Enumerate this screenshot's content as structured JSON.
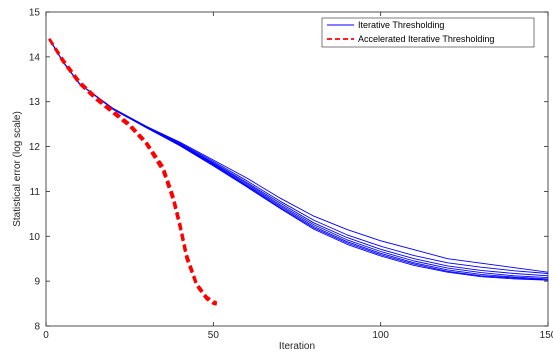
{
  "chart_data": {
    "type": "line",
    "xlabel": "Iteration",
    "ylabel": "Statistical error (log scale)",
    "xlim": [
      0,
      150
    ],
    "ylim": [
      8,
      15
    ],
    "xticks": [
      "0",
      "50",
      "100",
      "150"
    ],
    "yticks": [
      "8",
      "9",
      "10",
      "11",
      "12",
      "13",
      "14",
      "15"
    ],
    "grid": false,
    "legend_position": "top-right",
    "legend": [
      "Iterative Thresholding",
      "Accelerated Iterative Thresholding"
    ],
    "colors": {
      "iterative": "#0000ff",
      "accelerated": "#ff0000"
    },
    "series": [
      {
        "name": "Iterative Thresholding",
        "style": "solid",
        "runs": [
          [
            [
              1,
              14.4
            ],
            [
              5,
              13.9
            ],
            [
              10,
              13.4
            ],
            [
              20,
              12.85
            ],
            [
              30,
              12.45
            ],
            [
              40,
              12.1
            ],
            [
              50,
              11.7
            ],
            [
              60,
              11.3
            ],
            [
              70,
              10.85
            ],
            [
              80,
              10.45
            ],
            [
              90,
              10.15
            ],
            [
              100,
              9.9
            ],
            [
              110,
              9.7
            ],
            [
              120,
              9.5
            ],
            [
              130,
              9.4
            ],
            [
              140,
              9.3
            ],
            [
              150,
              9.2
            ]
          ],
          [
            [
              1,
              14.4
            ],
            [
              5,
              13.9
            ],
            [
              10,
              13.4
            ],
            [
              20,
              12.85
            ],
            [
              30,
              12.45
            ],
            [
              40,
              12.08
            ],
            [
              50,
              11.67
            ],
            [
              60,
              11.24
            ],
            [
              70,
              10.78
            ],
            [
              80,
              10.36
            ],
            [
              90,
              10.03
            ],
            [
              100,
              9.78
            ],
            [
              110,
              9.57
            ],
            [
              120,
              9.41
            ],
            [
              130,
              9.31
            ],
            [
              140,
              9.23
            ],
            [
              150,
              9.17
            ]
          ],
          [
            [
              1,
              14.4
            ],
            [
              5,
              13.9
            ],
            [
              10,
              13.4
            ],
            [
              20,
              12.85
            ],
            [
              30,
              12.44
            ],
            [
              40,
              12.06
            ],
            [
              50,
              11.64
            ],
            [
              60,
              11.2
            ],
            [
              70,
              10.74
            ],
            [
              80,
              10.3
            ],
            [
              90,
              9.97
            ],
            [
              100,
              9.71
            ],
            [
              110,
              9.5
            ],
            [
              120,
              9.34
            ],
            [
              130,
              9.24
            ],
            [
              140,
              9.17
            ],
            [
              150,
              9.12
            ]
          ],
          [
            [
              1,
              14.4
            ],
            [
              5,
              13.9
            ],
            [
              10,
              13.4
            ],
            [
              20,
              12.84
            ],
            [
              30,
              12.43
            ],
            [
              40,
              12.05
            ],
            [
              50,
              11.62
            ],
            [
              60,
              11.17
            ],
            [
              70,
              10.7
            ],
            [
              80,
              10.26
            ],
            [
              90,
              9.92
            ],
            [
              100,
              9.66
            ],
            [
              110,
              9.45
            ],
            [
              120,
              9.29
            ],
            [
              130,
              9.19
            ],
            [
              140,
              9.12
            ],
            [
              150,
              9.08
            ]
          ],
          [
            [
              1,
              14.4
            ],
            [
              5,
              13.9
            ],
            [
              10,
              13.4
            ],
            [
              20,
              12.84
            ],
            [
              30,
              12.43
            ],
            [
              40,
              12.04
            ],
            [
              50,
              11.6
            ],
            [
              60,
              11.14
            ],
            [
              70,
              10.67
            ],
            [
              80,
              10.22
            ],
            [
              90,
              9.88
            ],
            [
              100,
              9.62
            ],
            [
              110,
              9.41
            ],
            [
              120,
              9.25
            ],
            [
              130,
              9.15
            ],
            [
              140,
              9.09
            ],
            [
              150,
              9.05
            ]
          ],
          [
            [
              1,
              14.4
            ],
            [
              5,
              13.9
            ],
            [
              10,
              13.4
            ],
            [
              20,
              12.84
            ],
            [
              30,
              12.42
            ],
            [
              40,
              12.03
            ],
            [
              50,
              11.59
            ],
            [
              60,
              11.12
            ],
            [
              70,
              10.64
            ],
            [
              80,
              10.19
            ],
            [
              90,
              9.85
            ],
            [
              100,
              9.59
            ],
            [
              110,
              9.38
            ],
            [
              120,
              9.22
            ],
            [
              130,
              9.12
            ],
            [
              140,
              9.07
            ],
            [
              150,
              9.03
            ]
          ],
          [
            [
              1,
              14.4
            ],
            [
              5,
              13.9
            ],
            [
              10,
              13.4
            ],
            [
              20,
              12.83
            ],
            [
              30,
              12.42
            ],
            [
              40,
              12.02
            ],
            [
              50,
              11.57
            ],
            [
              60,
              11.1
            ],
            [
              70,
              10.62
            ],
            [
              80,
              10.16
            ],
            [
              90,
              9.82
            ],
            [
              100,
              9.56
            ],
            [
              110,
              9.35
            ],
            [
              120,
              9.2
            ],
            [
              130,
              9.1
            ],
            [
              140,
              9.05
            ],
            [
              150,
              9.02
            ]
          ]
        ]
      },
      {
        "name": "Accelerated Iterative Thresholding",
        "style": "dashed",
        "runs": [
          [
            [
              1,
              14.4
            ],
            [
              5,
              13.95
            ],
            [
              10,
              13.45
            ],
            [
              15,
              13.1
            ],
            [
              20,
              12.8
            ],
            [
              25,
              12.5
            ],
            [
              30,
              12.1
            ],
            [
              35,
              11.55
            ],
            [
              38,
              10.9
            ],
            [
              40,
              10.3
            ],
            [
              42,
              9.6
            ],
            [
              45,
              8.95
            ],
            [
              48,
              8.65
            ],
            [
              50,
              8.55
            ],
            [
              51,
              8.52
            ]
          ],
          [
            [
              1,
              14.4
            ],
            [
              5,
              13.9
            ],
            [
              10,
              13.4
            ],
            [
              15,
              13.05
            ],
            [
              20,
              12.75
            ],
            [
              25,
              12.45
            ],
            [
              30,
              12.05
            ],
            [
              35,
              11.45
            ],
            [
              38,
              10.8
            ],
            [
              40,
              10.2
            ],
            [
              42,
              9.5
            ],
            [
              45,
              8.9
            ],
            [
              48,
              8.6
            ],
            [
              50,
              8.5
            ],
            [
              51,
              8.48
            ]
          ],
          [
            [
              1,
              14.4
            ],
            [
              5,
              13.92
            ],
            [
              10,
              13.42
            ],
            [
              15,
              13.07
            ],
            [
              20,
              12.77
            ],
            [
              25,
              12.47
            ],
            [
              30,
              12.08
            ],
            [
              35,
              11.5
            ],
            [
              38,
              10.85
            ],
            [
              40,
              10.25
            ],
            [
              42,
              9.55
            ],
            [
              45,
              8.92
            ],
            [
              48,
              8.62
            ],
            [
              50,
              8.52
            ],
            [
              51,
              8.5
            ]
          ]
        ]
      }
    ]
  }
}
